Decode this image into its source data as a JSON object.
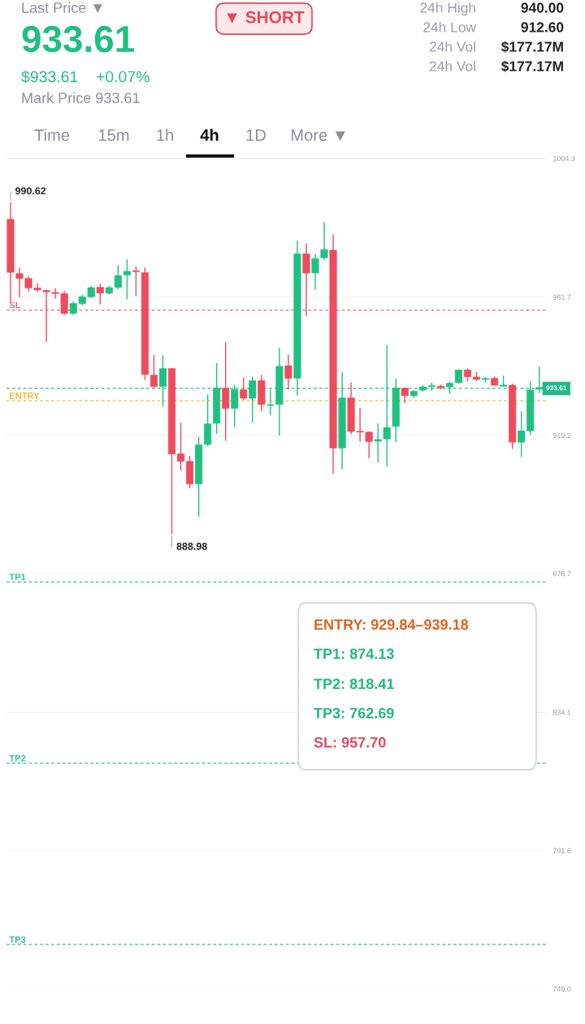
{
  "chart_data": {
    "type": "candlestick",
    "categories": [
      null,
      null,
      null,
      null,
      null,
      null,
      null,
      null,
      null,
      null,
      null,
      null,
      null,
      null,
      null,
      null,
      null,
      null,
      null,
      null,
      null,
      null,
      null,
      null,
      null,
      null,
      null,
      null,
      null,
      null,
      null,
      null,
      null,
      null,
      null,
      null,
      null,
      null,
      null,
      null,
      null,
      null,
      null,
      null,
      null,
      null,
      null,
      null,
      null,
      null,
      null,
      null,
      null,
      null,
      null,
      null,
      null,
      null,
      null,
      null
    ],
    "ohlc": [
      [
        985.6,
        990.62,
        960.2,
        969.3
      ],
      [
        968.9,
        970.6,
        961.8,
        967.4
      ],
      [
        967.4,
        968.0,
        963.5,
        964.5
      ],
      [
        964.5,
        965.7,
        963.5,
        963.9
      ],
      [
        963.7,
        963.9,
        948.1,
        963.3
      ],
      [
        963.1,
        964.3,
        961.4,
        962.8
      ],
      [
        962.8,
        963.5,
        956.4,
        956.7
      ],
      [
        956.7,
        960.2,
        956.4,
        959.7
      ],
      [
        959.7,
        962.2,
        959.3,
        961.8
      ],
      [
        961.8,
        964.9,
        961.6,
        964.6
      ],
      [
        964.7,
        965.6,
        959.6,
        962.9
      ],
      [
        962.9,
        964.9,
        962.7,
        964.6
      ],
      [
        964.7,
        971.4,
        964.3,
        968.3
      ],
      [
        968.5,
        973.1,
        961.2,
        969.6
      ],
      [
        969.7,
        971.0,
        962.2,
        969.5
      ],
      [
        969.2,
        970.6,
        936.4,
        937.9
      ],
      [
        937.7,
        943.7,
        933.9,
        934.2
      ],
      [
        934.2,
        943.7,
        928.2,
        939.7
      ],
      [
        939.7,
        939.7,
        888.98,
        913.5
      ],
      [
        913.5,
        922.9,
        908.5,
        911.2
      ],
      [
        911.2,
        912.7,
        903.1,
        904.3
      ],
      [
        904.3,
        918.5,
        894.3,
        916.3
      ],
      [
        916.4,
        931.6,
        916.0,
        922.7
      ],
      [
        922.9,
        941.2,
        919.8,
        933.7
      ],
      [
        933.7,
        947.7,
        917.7,
        927.5
      ],
      [
        927.5,
        934.6,
        922.0,
        933.3
      ],
      [
        933.2,
        936.8,
        930.2,
        930.6
      ],
      [
        930.6,
        937.1,
        923.3,
        936.0
      ],
      [
        936.0,
        937.6,
        926.8,
        928.7
      ],
      [
        928.4,
        933.1,
        925.6,
        928.6
      ],
      [
        928.7,
        946.0,
        919.3,
        940.4
      ],
      [
        940.6,
        943.9,
        933.5,
        936.7
      ],
      [
        936.8,
        978.9,
        931.6,
        975.0
      ],
      [
        975.0,
        978.1,
        956.1,
        969.1
      ],
      [
        969.1,
        974.7,
        964.1,
        973.5
      ],
      [
        973.8,
        984.6,
        973.3,
        976.3
      ],
      [
        976.1,
        980.8,
        907.6,
        915.3
      ],
      [
        915.3,
        938.5,
        908.9,
        930.7
      ],
      [
        930.7,
        935.3,
        919.7,
        920.4
      ],
      [
        920.4,
        927.5,
        917.4,
        920.2
      ],
      [
        920.2,
        920.2,
        912.3,
        917.3
      ],
      [
        917.4,
        922.7,
        911.0,
        917.9
      ],
      [
        918.1,
        946.8,
        909.8,
        921.6
      ],
      [
        922.0,
        936.4,
        917.2,
        933.7
      ],
      [
        933.7,
        933.7,
        929.3,
        931.4
      ],
      [
        931.4,
        932.9,
        931.0,
        932.7
      ],
      [
        933.1,
        934.5,
        932.8,
        934.1
      ],
      [
        934.2,
        935.2,
        933.1,
        934.5
      ],
      [
        934.3,
        934.6,
        933.5,
        933.9
      ],
      [
        934.1,
        935.6,
        932.2,
        935.2
      ],
      [
        935.4,
        939.3,
        935.2,
        939.3
      ],
      [
        939.3,
        939.5,
        936.0,
        937.2
      ],
      [
        937.1,
        938.5,
        936.2,
        936.4
      ],
      [
        936.4,
        937.0,
        935.6,
        936.7
      ],
      [
        936.7,
        937.1,
        934.6,
        934.6
      ],
      [
        934.3,
        937.4,
        934.3,
        934.6
      ],
      [
        934.6,
        934.9,
        915.2,
        917.1
      ],
      [
        917.1,
        926.4,
        912.7,
        920.6
      ],
      [
        920.6,
        935.6,
        919.5,
        933.1
      ],
      [
        933.4,
        940.2,
        932.2,
        933.9
      ]
    ],
    "colors": [
      "#ee4b5e",
      "#ee4b5e",
      "#ee4b5e",
      "#ee4b5e",
      "#ee4b5e",
      "#ee4b5e",
      "#ee4b5e",
      "#20c083",
      "#20c083",
      "#20c083",
      "#ee4b5e",
      "#20c083",
      "#20c083",
      "#20c083",
      "#ee4b5e",
      "#ee4b5e",
      "#ee4b5e",
      "#20c083",
      "#ee4b5e",
      "#ee4b5e",
      "#ee4b5e",
      "#20c083",
      "#20c083",
      "#20c083",
      "#ee4b5e",
      "#20c083",
      "#ee4b5e",
      "#20c083",
      "#ee4b5e",
      "#20c083",
      "#20c083",
      "#ee4b5e",
      "#20c083",
      "#ee4b5e",
      "#20c083",
      "#20c083",
      "#ee4b5e",
      "#20c083",
      "#ee4b5e",
      "#ee4b5e",
      "#ee4b5e",
      "#20c083",
      "#20c083",
      "#20c083",
      "#ee4b5e",
      "#20c083",
      "#20c083",
      "#20c083",
      "#ee4b5e",
      "#20c083",
      "#20c083",
      "#ee4b5e",
      "#ee4b5e",
      "#20c083",
      "#ee4b5e",
      "#20c083",
      "#ee4b5e",
      "#20c083",
      "#20c083",
      "#20c083"
    ],
    "ylim": [
      749.0,
      1004.3
    ],
    "yticks": [
      {
        "value": 749.0,
        "label": "749.0"
      },
      791.6,
      834.1,
      876.7,
      919.2,
      961.7,
      1004.3
    ],
    "tick_labels": "y",
    "grid": "y",
    "ref_lines": [
      {
        "axis": "y",
        "value": 957.7,
        "label": "SL",
        "color": "#e8707f",
        "line_style": "dashed"
      },
      {
        "axis": "y",
        "value": 933.61,
        "label": "933.61",
        "color": "#22b888",
        "line_style": "dashed"
      },
      {
        "axis": "y",
        "value": 929.84,
        "label": "ENTRY",
        "color": "#e8c040",
        "line_style": "dashed"
      },
      {
        "axis": "y",
        "value": 874.13,
        "label": "TP1",
        "color": "#2cc48c",
        "line_style": "dashed"
      },
      {
        "axis": "y",
        "value": 818.41,
        "label": "TP2",
        "color": "#2cc48c",
        "line_style": "dashed"
      },
      {
        "axis": "y",
        "value": 762.69,
        "label": "TP3",
        "color": "#2cc48c",
        "line_style": "dashed"
      }
    ],
    "annotations": [
      "Last Price ▼",
      "933.61",
      "$933.61",
      "+0.07%",
      "Mark Price 933.61",
      "▼ SHORT",
      "24h High",
      "940.00",
      "24h Low",
      "912.60",
      "24h Vol",
      "$177.17M",
      "24h Vol",
      "$177.17M",
      "Time",
      "15m",
      "1h",
      "4h",
      "1D",
      "More ▼",
      "ENTRY: 929.84–939.18",
      "TP1: 874.13",
      "TP2: 818.41",
      "TP3: 762.69",
      "SL: 957.70",
      "990.62",
      "888.98"
    ]
  }
}
